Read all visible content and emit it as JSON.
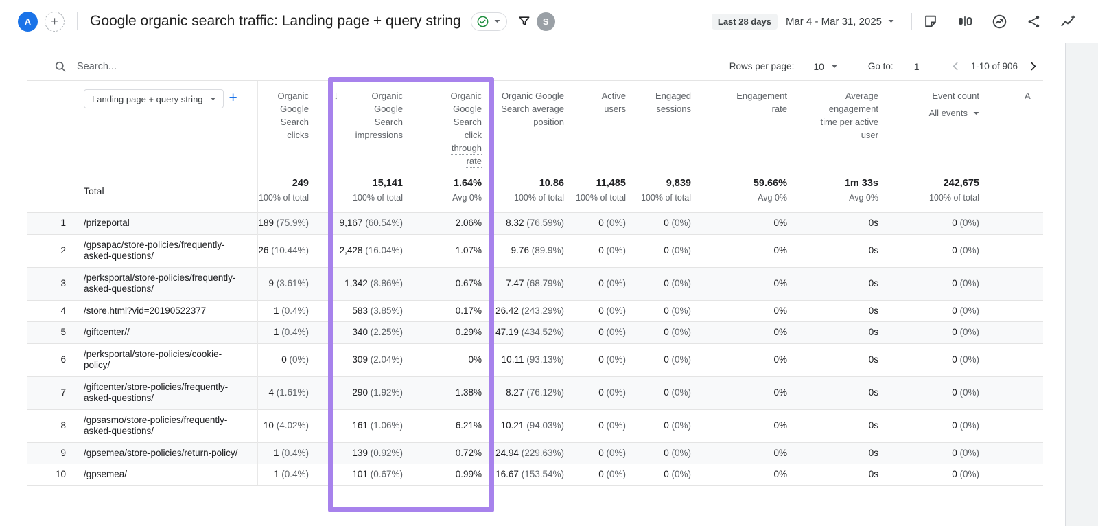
{
  "appbar": {
    "account_avatar_letter": "A",
    "title": "Google organic search traffic: Landing page + query string",
    "date_preset": "Last 28 days",
    "date_range": "Mar 4 - Mar 31, 2025",
    "user_avatar_letter": "S",
    "icons": {
      "add_comparison": "plus-dashed-circle",
      "report_status": "check-circle",
      "filter": "funnel",
      "notes": "sticky-note",
      "comparisons": "ab-bars",
      "insights_circle": "circle-trend-arrow",
      "share": "share-nodes",
      "insights_sparkline": "trend-line-plus"
    }
  },
  "toolbar": {
    "search_placeholder": "Search...",
    "rows_per_page_label": "Rows per page:",
    "rows_per_page_value": "10",
    "goto_label": "Go to:",
    "goto_value": "1",
    "pagination_range": "1-10 of 906"
  },
  "highlight": {
    "color": "#a782ec"
  },
  "table": {
    "dimension_selector": "Landing page + query string",
    "sort_icon": "↓",
    "truncated_column_text": "A",
    "columns": [
      {
        "id": "clicks",
        "label": "Organic Google Search clicks"
      },
      {
        "id": "impressions",
        "label": "Organic Google Search impressions",
        "sorted": "descending"
      },
      {
        "id": "ctr",
        "label": "Organic Google Search click through rate"
      },
      {
        "id": "avg_position",
        "label": "Organic Google Search average position"
      },
      {
        "id": "active_users",
        "label": "Active users"
      },
      {
        "id": "engaged_sessions",
        "label": "Engaged sessions"
      },
      {
        "id": "engagement_rate",
        "label": "Engagement rate"
      },
      {
        "id": "avg_engagement_time",
        "label": "Average engagement time per active user"
      },
      {
        "id": "event_count",
        "label": "Event count",
        "filter": "All events"
      }
    ],
    "total": {
      "label": "Total",
      "clicks": {
        "v": "249",
        "s": "100% of total"
      },
      "impressions": {
        "v": "15,141",
        "s": "100% of total"
      },
      "ctr": {
        "v": "1.64%",
        "s": "Avg 0%"
      },
      "position": {
        "v": "10.86",
        "s": "100% of total"
      },
      "users": {
        "v": "11,485",
        "s": "100% of total"
      },
      "sessions": {
        "v": "9,839",
        "s": "100% of total"
      },
      "rate": {
        "v": "59.66%",
        "s": "Avg 0%"
      },
      "time": {
        "v": "1m 33s",
        "s": "Avg 0%"
      },
      "events": {
        "v": "242,675",
        "s": "100% of total"
      }
    },
    "rows": [
      {
        "rank": "1",
        "page": "/prizeportal",
        "clicks": {
          "v": "189",
          "p": "(75.9%)"
        },
        "impressions": {
          "v": "9,167",
          "p": "(60.54%)"
        },
        "ctr": "2.06%",
        "position": {
          "v": "8.32",
          "p": "(76.59%)"
        },
        "users": {
          "v": "0",
          "p": "(0%)"
        },
        "sessions": {
          "v": "0",
          "p": "(0%)"
        },
        "rate": "0%",
        "time": "0s",
        "events": {
          "v": "0",
          "p": "(0%)"
        }
      },
      {
        "rank": "2",
        "page": "/gpsapac/store-policies/frequently-asked-questions/",
        "clicks": {
          "v": "26",
          "p": "(10.44%)"
        },
        "impressions": {
          "v": "2,428",
          "p": "(16.04%)"
        },
        "ctr": "1.07%",
        "position": {
          "v": "9.76",
          "p": "(89.9%)"
        },
        "users": {
          "v": "0",
          "p": "(0%)"
        },
        "sessions": {
          "v": "0",
          "p": "(0%)"
        },
        "rate": "0%",
        "time": "0s",
        "events": {
          "v": "0",
          "p": "(0%)"
        }
      },
      {
        "rank": "3",
        "page": "/perksportal/store-policies/frequently-asked-questions/",
        "clicks": {
          "v": "9",
          "p": "(3.61%)"
        },
        "impressions": {
          "v": "1,342",
          "p": "(8.86%)"
        },
        "ctr": "0.67%",
        "position": {
          "v": "7.47",
          "p": "(68.79%)"
        },
        "users": {
          "v": "0",
          "p": "(0%)"
        },
        "sessions": {
          "v": "0",
          "p": "(0%)"
        },
        "rate": "0%",
        "time": "0s",
        "events": {
          "v": "0",
          "p": "(0%)"
        }
      },
      {
        "rank": "4",
        "page": "/store.html?vid=20190522377",
        "clicks": {
          "v": "1",
          "p": "(0.4%)"
        },
        "impressions": {
          "v": "583",
          "p": "(3.85%)"
        },
        "ctr": "0.17%",
        "position": {
          "v": "26.42",
          "p": "(243.29%)"
        },
        "users": {
          "v": "0",
          "p": "(0%)"
        },
        "sessions": {
          "v": "0",
          "p": "(0%)"
        },
        "rate": "0%",
        "time": "0s",
        "events": {
          "v": "0",
          "p": "(0%)"
        }
      },
      {
        "rank": "5",
        "page": "/giftcenter//",
        "clicks": {
          "v": "1",
          "p": "(0.4%)"
        },
        "impressions": {
          "v": "340",
          "p": "(2.25%)"
        },
        "ctr": "0.29%",
        "position": {
          "v": "47.19",
          "p": "(434.52%)"
        },
        "users": {
          "v": "0",
          "p": "(0%)"
        },
        "sessions": {
          "v": "0",
          "p": "(0%)"
        },
        "rate": "0%",
        "time": "0s",
        "events": {
          "v": "0",
          "p": "(0%)"
        }
      },
      {
        "rank": "6",
        "page": "/perksportal/store-policies/cookie-policy/",
        "clicks": {
          "v": "0",
          "p": "(0%)"
        },
        "impressions": {
          "v": "309",
          "p": "(2.04%)"
        },
        "ctr": "0%",
        "position": {
          "v": "10.11",
          "p": "(93.13%)"
        },
        "users": {
          "v": "0",
          "p": "(0%)"
        },
        "sessions": {
          "v": "0",
          "p": "(0%)"
        },
        "rate": "0%",
        "time": "0s",
        "events": {
          "v": "0",
          "p": "(0%)"
        }
      },
      {
        "rank": "7",
        "page": "/giftcenter/store-policies/frequently-asked-questions/",
        "clicks": {
          "v": "4",
          "p": "(1.61%)"
        },
        "impressions": {
          "v": "290",
          "p": "(1.92%)"
        },
        "ctr": "1.38%",
        "position": {
          "v": "8.27",
          "p": "(76.12%)"
        },
        "users": {
          "v": "0",
          "p": "(0%)"
        },
        "sessions": {
          "v": "0",
          "p": "(0%)"
        },
        "rate": "0%",
        "time": "0s",
        "events": {
          "v": "0",
          "p": "(0%)"
        }
      },
      {
        "rank": "8",
        "page": "/gpsasmo/store-policies/frequently-asked-questions/",
        "clicks": {
          "v": "10",
          "p": "(4.02%)"
        },
        "impressions": {
          "v": "161",
          "p": "(1.06%)"
        },
        "ctr": "6.21%",
        "position": {
          "v": "10.21",
          "p": "(94.03%)"
        },
        "users": {
          "v": "0",
          "p": "(0%)"
        },
        "sessions": {
          "v": "0",
          "p": "(0%)"
        },
        "rate": "0%",
        "time": "0s",
        "events": {
          "v": "0",
          "p": "(0%)"
        }
      },
      {
        "rank": "9",
        "page": "/gpsemea/store-policies/return-policy/",
        "clicks": {
          "v": "1",
          "p": "(0.4%)"
        },
        "impressions": {
          "v": "139",
          "p": "(0.92%)"
        },
        "ctr": "0.72%",
        "position": {
          "v": "24.94",
          "p": "(229.63%)"
        },
        "users": {
          "v": "0",
          "p": "(0%)"
        },
        "sessions": {
          "v": "0",
          "p": "(0%)"
        },
        "rate": "0%",
        "time": "0s",
        "events": {
          "v": "0",
          "p": "(0%)"
        }
      },
      {
        "rank": "10",
        "page": "/gpsemea/",
        "clicks": {
          "v": "1",
          "p": "(0.4%)"
        },
        "impressions": {
          "v": "101",
          "p": "(0.67%)"
        },
        "ctr": "0.99%",
        "position": {
          "v": "16.67",
          "p": "(153.54%)"
        },
        "users": {
          "v": "0",
          "p": "(0%)"
        },
        "sessions": {
          "v": "0",
          "p": "(0%)"
        },
        "rate": "0%",
        "time": "0s",
        "events": {
          "v": "0",
          "p": "(0%)"
        }
      }
    ]
  }
}
